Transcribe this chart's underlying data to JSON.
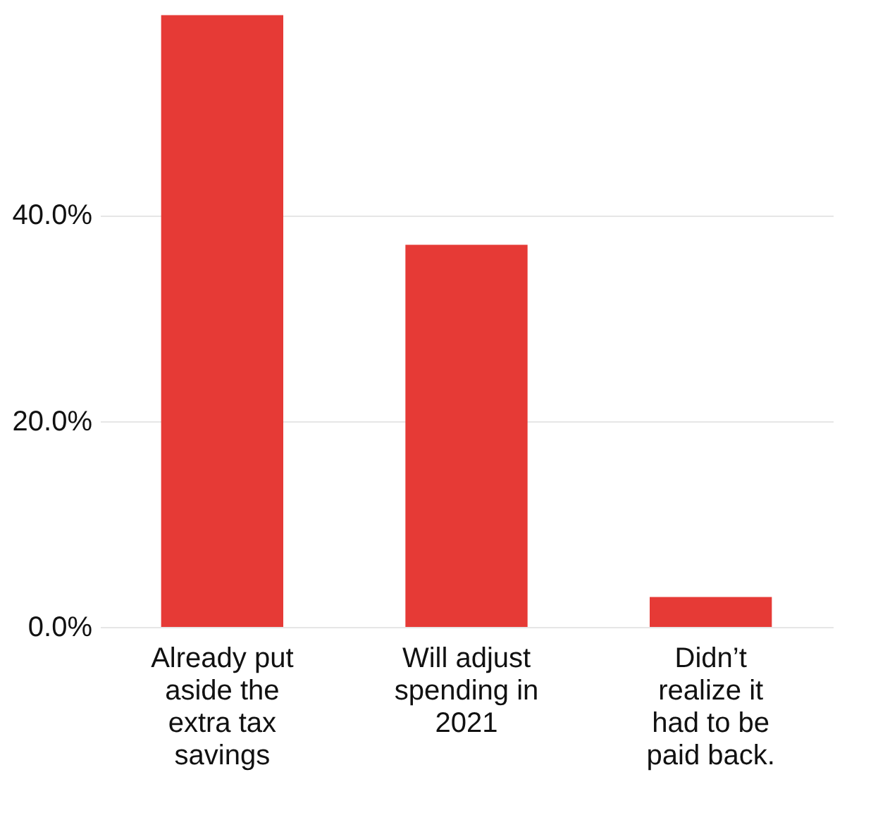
{
  "chart_data": {
    "type": "bar",
    "categories": [
      "Already put aside the extra tax savings",
      "Will adjust spending in 2021",
      "Didn’t realize it had to be paid back."
    ],
    "values": [
      59.4,
      37.1,
      2.9
    ],
    "color": "#e63a36",
    "ylim": [
      0,
      59.5
    ],
    "yticks": [
      {
        "value": 0,
        "label": "0.0%"
      },
      {
        "value": 20,
        "label": "20.0%"
      },
      {
        "value": 40,
        "label": "40.0%"
      }
    ],
    "grid": "y"
  }
}
